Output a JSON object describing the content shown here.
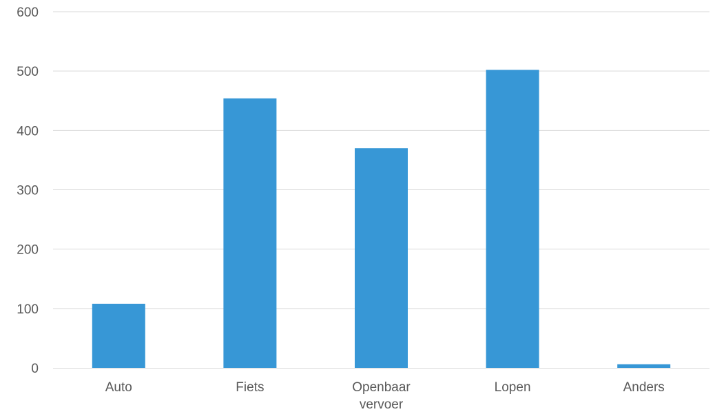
{
  "chart_data": {
    "type": "bar",
    "title": "",
    "xlabel": "",
    "ylabel": "",
    "categories": [
      [
        "Auto"
      ],
      [
        "Fiets"
      ],
      [
        "Openbaar",
        "vervoer"
      ],
      [
        "Lopen"
      ],
      [
        "Anders"
      ]
    ],
    "values": [
      108,
      454,
      370,
      502,
      6
    ],
    "ylim": [
      0,
      600
    ],
    "yticks": [
      "0",
      "100",
      "200",
      "300",
      "400",
      "500",
      "600"
    ],
    "grid": true,
    "legend": "none",
    "bar_color": "#3797d6"
  }
}
